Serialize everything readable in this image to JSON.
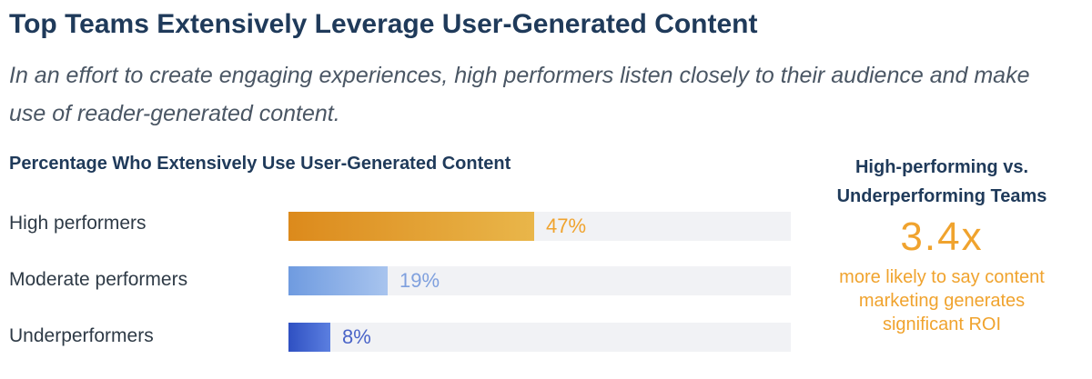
{
  "title": "Top Teams Extensively Leverage User-Generated Content",
  "subtitle": "In an effort to create engaging experiences, high performers listen closely to their audience and make use of reader-generated content.",
  "chart_data": {
    "type": "bar",
    "orientation": "horizontal",
    "title": "Percentage Who Extensively Use User-Generated Content",
    "categories": [
      "High performers",
      "Moderate performers",
      "Underperformers"
    ],
    "values": [
      47,
      19,
      8
    ],
    "value_labels": [
      "47%",
      "19%",
      "8%"
    ],
    "unit": "%",
    "xlim": [
      0,
      100
    ],
    "colors": [
      "#e19a2a",
      "#7fa7e6",
      "#3a5ccc"
    ],
    "label_colors": [
      "#f0a32e",
      "#7fa0de",
      "#4a64c8"
    ]
  },
  "callout": {
    "heading_line1": "High-performing vs.",
    "heading_line2": "Underperforming Teams",
    "stat": "3.4x",
    "text_line1": "more likely to say content",
    "text_line2": "marketing generates",
    "text_line3": "significant ROI",
    "accent_color": "#f0a32e"
  }
}
